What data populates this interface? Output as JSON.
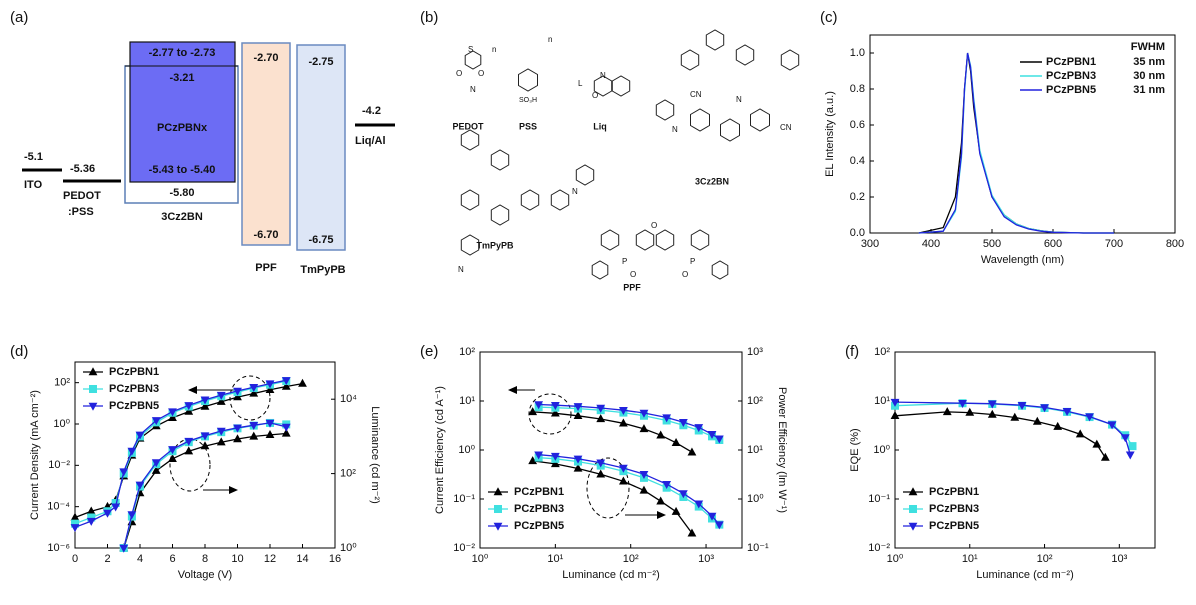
{
  "energy_diagram": {
    "panel": "(a)",
    "ito": {
      "level": "-5.1",
      "label": "ITO"
    },
    "pedot": {
      "level": "-5.36",
      "label_1": "PEDOT",
      "label_2": ":PSS"
    },
    "host": {
      "homo": "-5.80",
      "label": "3Cz2BN"
    },
    "emitter": {
      "lumo": "-2.77 to -2.73",
      "level": "-3.21",
      "label": "PCzPBNx",
      "homo": "-5.43 to -5.40"
    },
    "ppf": {
      "lumo": "-2.70",
      "homo": "-6.70",
      "label": "PPF"
    },
    "tmpypb": {
      "lumo": "-2.75",
      "homo": "-6.75",
      "label": "TmPyPB"
    },
    "cathode": {
      "level": "-4.2",
      "label": "Liq/Al"
    }
  },
  "structures": {
    "panel": "(b)",
    "molecules": [
      {
        "label": "PEDOT",
        "atoms": [
          "S",
          "O",
          "O",
          "n"
        ]
      },
      {
        "label": "PSS",
        "atoms": [
          "SO₃H",
          "n"
        ]
      },
      {
        "label": "Liq",
        "atoms": [
          "N",
          "O",
          "L"
        ]
      },
      {
        "label": "3Cz2BN",
        "atoms": [
          "N",
          "N",
          "CN",
          "CN"
        ]
      },
      {
        "label": "TmPyPB",
        "atoms": [
          "N",
          "N",
          "N"
        ]
      },
      {
        "label": "PPF",
        "atoms": [
          "O",
          "P",
          "P",
          "O",
          "O"
        ]
      }
    ]
  },
  "chart_data": [
    {
      "type": "line",
      "panel": "(c)",
      "xlabel": "Wavelength (nm)",
      "ylabel": "EL Intensity (a.u.)",
      "xlim": [
        300,
        800
      ],
      "xticks": [
        300,
        400,
        500,
        600,
        700,
        800
      ],
      "ylim": [
        0,
        1.1
      ],
      "yticks": [
        {
          "value": 0,
          "label": "0.0"
        },
        0.2,
        0.4,
        0.6,
        0.8,
        {
          "value": 1,
          "label": "1.0"
        }
      ],
      "legend": "upper right",
      "legend_title": "FWHM",
      "markers": false,
      "series": [
        {
          "name": "PCzPBN1",
          "fwhm": "35 nm",
          "color": "#000000",
          "x": [
            380,
            420,
            440,
            450,
            455,
            460,
            465,
            470,
            480,
            500,
            520,
            540,
            560,
            580,
            600,
            650,
            700
          ],
          "values": [
            0,
            0.03,
            0.2,
            0.5,
            0.8,
            1.0,
            0.9,
            0.7,
            0.45,
            0.2,
            0.1,
            0.05,
            0.025,
            0.012,
            0.005,
            0,
            0
          ]
        },
        {
          "name": "PCzPBN3",
          "fwhm": "30 nm",
          "color": "#3fe0e0",
          "x": [
            380,
            420,
            440,
            450,
            455,
            460,
            465,
            470,
            480,
            500,
            520,
            540,
            560,
            580,
            600,
            650,
            700
          ],
          "values": [
            0,
            0.01,
            0.12,
            0.42,
            0.78,
            1.0,
            0.93,
            0.75,
            0.46,
            0.21,
            0.1,
            0.05,
            0.025,
            0.012,
            0.005,
            0,
            0
          ]
        },
        {
          "name": "PCzPBN5",
          "fwhm": "31 nm",
          "color": "#2222dd",
          "x": [
            380,
            420,
            440,
            450,
            455,
            460,
            465,
            470,
            480,
            500,
            520,
            540,
            560,
            580,
            600,
            650,
            700
          ],
          "values": [
            0,
            0.01,
            0.13,
            0.44,
            0.8,
            1.0,
            0.92,
            0.73,
            0.44,
            0.2,
            0.09,
            0.045,
            0.022,
            0.01,
            0.004,
            0,
            0
          ]
        }
      ]
    },
    {
      "type": "line",
      "panel": "(d)",
      "xlabel": "Voltage (V)",
      "ylabel": "Current Density (mA cm⁻²)",
      "y2label": "Luminance (cd m⁻²)",
      "xlim": [
        0,
        16
      ],
      "xticks": [
        0,
        2,
        4,
        6,
        8,
        10,
        12,
        14,
        16
      ],
      "ylim": [
        1e-06,
        1000
      ],
      "log_y": true,
      "yticks": [
        {
          "value": 1e-06,
          "label": "10⁻⁶"
        },
        {
          "value": 0.0001,
          "label": "10⁻⁴"
        },
        {
          "value": 0.01,
          "label": "10⁻²"
        },
        {
          "value": 1,
          "label": "10⁰"
        },
        {
          "value": 100,
          "label": "10²"
        }
      ],
      "y2lim": [
        1,
        100000
      ],
      "y2ticks": [
        {
          "value": 1,
          "label": "10⁰"
        },
        {
          "value": 100,
          "label": "10²"
        },
        {
          "value": 10000,
          "label": "10⁴"
        }
      ],
      "legend": "upper left",
      "markers": true,
      "series": [
        {
          "name": "PCzPBN1",
          "color": "#000000",
          "marker": "triangle-up",
          "x": [
            0,
            1,
            2,
            2.5,
            3,
            3.5,
            4,
            5,
            6,
            7,
            8,
            9,
            10,
            11,
            12,
            13,
            14
          ],
          "values": [
            3e-05,
            6e-05,
            0.0001,
            0.0002,
            0.003,
            0.03,
            0.2,
            0.8,
            2,
            4,
            7,
            12,
            20,
            30,
            45,
            65,
            90
          ],
          "y2_values": [
            null,
            null,
            null,
            null,
            1,
            5,
            30,
            120,
            250,
            400,
            550,
            700,
            850,
            1000,
            1100,
            1200,
            null
          ]
        },
        {
          "name": "PCzPBN3",
          "color": "#3fe0e0",
          "marker": "square",
          "x": [
            0,
            1,
            2,
            2.5,
            3,
            3.5,
            4,
            5,
            6,
            7,
            8,
            9,
            10,
            11,
            12,
            13
          ],
          "values": [
            1.5e-05,
            3e-05,
            6e-05,
            0.00015,
            0.004,
            0.04,
            0.25,
            1.2,
            3.5,
            7,
            13,
            22,
            35,
            55,
            80,
            120
          ],
          "y2_values": [
            null,
            null,
            null,
            null,
            1,
            7,
            45,
            180,
            400,
            700,
            1000,
            1300,
            1650,
            1950,
            2300,
            2100
          ]
        },
        {
          "name": "PCzPBN5",
          "color": "#2222dd",
          "marker": "triangle-down",
          "x": [
            0,
            1,
            2,
            2.5,
            3,
            3.5,
            4,
            5,
            6,
            7,
            8,
            9,
            10,
            11,
            12,
            13
          ],
          "values": [
            1e-05,
            2e-05,
            5e-05,
            0.0001,
            0.005,
            0.05,
            0.3,
            1.5,
            4,
            8,
            15,
            25,
            40,
            60,
            90,
            130
          ],
          "y2_values": [
            null,
            null,
            null,
            null,
            1,
            8,
            50,
            200,
            450,
            750,
            1050,
            1400,
            1700,
            2000,
            2300,
            1800
          ]
        }
      ]
    },
    {
      "type": "line",
      "panel": "(e)",
      "xlabel": "Luminance (cd m⁻²)",
      "ylabel": "Current Efficiency (cd A⁻¹)",
      "y2label": "Power Efficiency (lm W⁻¹)",
      "xlim": [
        1,
        3000
      ],
      "log_x": true,
      "xticks": [
        {
          "value": 1,
          "label": "10⁰"
        },
        {
          "value": 10,
          "label": "10¹"
        },
        {
          "value": 100,
          "label": "10²"
        },
        {
          "value": 1000,
          "label": "10³"
        }
      ],
      "ylim": [
        0.01,
        100
      ],
      "log_y": true,
      "yticks": [
        {
          "value": 0.01,
          "label": "10⁻²"
        },
        {
          "value": 0.1,
          "label": "10⁻¹"
        },
        {
          "value": 1,
          "label": "10⁰"
        },
        {
          "value": 10,
          "label": "10¹"
        },
        {
          "value": 100,
          "label": "10²"
        }
      ],
      "y2lim": [
        0.1,
        1000
      ],
      "y2ticks": [
        {
          "value": 0.1,
          "label": "10⁻¹"
        },
        {
          "value": 1,
          "label": "10⁰"
        },
        {
          "value": 10,
          "label": "10¹"
        },
        {
          "value": 100,
          "label": "10²"
        },
        {
          "value": 1000,
          "label": "10³"
        }
      ],
      "legend": "lower left",
      "markers": true,
      "series": [
        {
          "name": "PCzPBN1",
          "color": "#000000",
          "marker": "triangle-up",
          "x": [
            5,
            10,
            20,
            40,
            80,
            150,
            250,
            400,
            650
          ],
          "values": [
            6,
            5.6,
            5,
            4.3,
            3.5,
            2.7,
            2,
            1.4,
            0.9
          ],
          "y2_values": [
            6,
            5.2,
            4.2,
            3.2,
            2.3,
            1.5,
            0.9,
            0.55,
            0.2
          ]
        },
        {
          "name": "PCzPBN3",
          "color": "#3fe0e0",
          "marker": "square",
          "x": [
            6,
            10,
            20,
            40,
            80,
            150,
            300,
            500,
            800,
            1200,
            1500
          ],
          "values": [
            7.5,
            7.3,
            7,
            6.5,
            5.8,
            5,
            4,
            3.2,
            2.5,
            1.9,
            1.6
          ],
          "y2_values": [
            7,
            6.6,
            5.8,
            4.8,
            3.7,
            2.7,
            1.7,
            1.1,
            0.7,
            0.4,
            0.3
          ]
        },
        {
          "name": "PCzPBN5",
          "color": "#2222dd",
          "marker": "triangle-down",
          "x": [
            6,
            10,
            20,
            40,
            80,
            150,
            300,
            500,
            800,
            1200,
            1500
          ],
          "values": [
            8.5,
            8.2,
            7.8,
            7.2,
            6.5,
            5.7,
            4.6,
            3.7,
            2.9,
            2.1,
            1.7
          ],
          "y2_values": [
            8,
            7.5,
            6.6,
            5.5,
            4.3,
            3.2,
            2,
            1.3,
            0.8,
            0.45,
            0.3
          ]
        }
      ]
    },
    {
      "type": "line",
      "panel": "(f)",
      "xlabel": "Luminance (cd m⁻²)",
      "ylabel": "EQE (%)",
      "xlim": [
        1,
        3000
      ],
      "log_x": true,
      "xticks": [
        {
          "value": 1,
          "label": "10⁰"
        },
        {
          "value": 10,
          "label": "10¹"
        },
        {
          "value": 100,
          "label": "10²"
        },
        {
          "value": 1000,
          "label": "10³"
        }
      ],
      "ylim": [
        0.01,
        100
      ],
      "log_y": true,
      "yticks": [
        {
          "value": 0.01,
          "label": "10⁻²"
        },
        {
          "value": 0.1,
          "label": "10⁻¹"
        },
        {
          "value": 1,
          "label": "10⁰"
        },
        {
          "value": 10,
          "label": "10¹"
        },
        {
          "value": 100,
          "label": "10²"
        }
      ],
      "legend": "lower left",
      "markers": true,
      "series": [
        {
          "name": "PCzPBN1",
          "color": "#000000",
          "marker": "triangle-up",
          "x": [
            1,
            5,
            10,
            20,
            40,
            80,
            150,
            300,
            500,
            650
          ],
          "values": [
            5,
            6,
            5.8,
            5.3,
            4.6,
            3.8,
            3,
            2.1,
            1.3,
            0.7
          ]
        },
        {
          "name": "PCzPBN3",
          "color": "#3fe0e0",
          "marker": "square",
          "x": [
            1,
            8,
            20,
            50,
            100,
            200,
            400,
            800,
            1200,
            1500
          ],
          "values": [
            8,
            9,
            8.7,
            8,
            7.2,
            6,
            4.7,
            3.3,
            2,
            1.2
          ]
        },
        {
          "name": "PCzPBN5",
          "color": "#2222dd",
          "marker": "triangle-down",
          "x": [
            1,
            8,
            20,
            50,
            100,
            200,
            400,
            800,
            1200,
            1400
          ],
          "values": [
            9.5,
            9,
            8.8,
            8.2,
            7.4,
            6.2,
            4.8,
            3.3,
            1.8,
            0.8
          ]
        }
      ]
    }
  ]
}
